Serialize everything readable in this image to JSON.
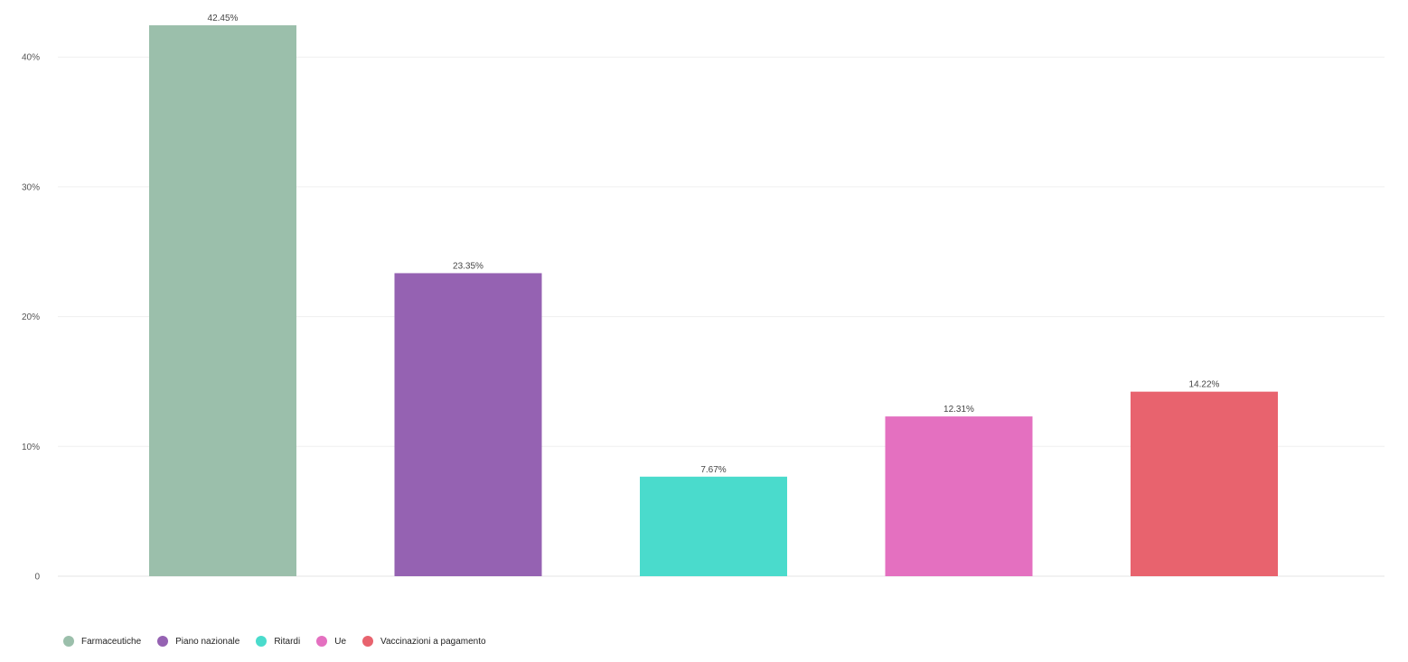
{
  "chart_data": {
    "type": "bar",
    "title": "",
    "xlabel": "",
    "ylabel": "",
    "categories": [
      "Farmaceutiche",
      "Piano nazionale",
      "Ritardi",
      "Ue",
      "Vaccinazioni a pagamento"
    ],
    "values": [
      42.45,
      23.35,
      7.67,
      12.31,
      14.22
    ],
    "value_labels": [
      "42.45%",
      "23.35%",
      "7.67%",
      "12.31%",
      "14.22%"
    ],
    "colors": [
      "#9bbfab",
      "#9562b2",
      "#4adbcc",
      "#e470c0",
      "#e8636e"
    ],
    "ylim": [
      0,
      42.45
    ],
    "y_ticks": [
      0,
      10,
      20,
      30,
      40
    ],
    "y_tick_labels": [
      "0",
      "10%",
      "20%",
      "30%",
      "40%"
    ],
    "grid": true,
    "legend_position": "bottom-left",
    "legend": [
      {
        "label": "Farmaceutiche",
        "color": "#9bbfab"
      },
      {
        "label": "Piano nazionale",
        "color": "#9562b2"
      },
      {
        "label": "Ritardi",
        "color": "#4adbcc"
      },
      {
        "label": "Ue",
        "color": "#e470c0"
      },
      {
        "label": "Vaccinazioni a pagamento",
        "color": "#e8636e"
      }
    ]
  }
}
